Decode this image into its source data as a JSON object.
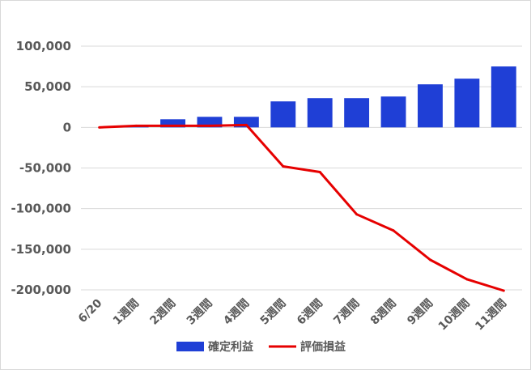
{
  "chart_data": {
    "type": "bar",
    "categories": [
      "6/20",
      "1週間",
      "2週間",
      "3週間",
      "4週間",
      "5週間",
      "6週間",
      "7週間",
      "8週間",
      "9週間",
      "10週間",
      "11週間"
    ],
    "ylim": [
      -200000,
      100000
    ],
    "yticks": [
      -200000,
      -150000,
      -100000,
      -50000,
      0,
      50000,
      100000
    ],
    "ytick_labels": [
      "-200,000",
      "-150,000",
      "-100,000",
      "-50,000",
      "0",
      "50,000",
      "100,000"
    ],
    "grid": true,
    "legend_position": "bottom",
    "series": [
      {
        "name": "確定利益",
        "kind": "bar",
        "color": "#1f3fd6",
        "values": [
          0,
          2000,
          10000,
          13000,
          13000,
          32000,
          36000,
          36000,
          38000,
          53000,
          60000,
          75000
        ]
      },
      {
        "name": "評価損益",
        "kind": "line",
        "color": "#e60000",
        "values": [
          0,
          2000,
          2000,
          2000,
          3000,
          -48000,
          -55000,
          -107000,
          -127000,
          -163000,
          -187000,
          -201000
        ]
      }
    ]
  }
}
